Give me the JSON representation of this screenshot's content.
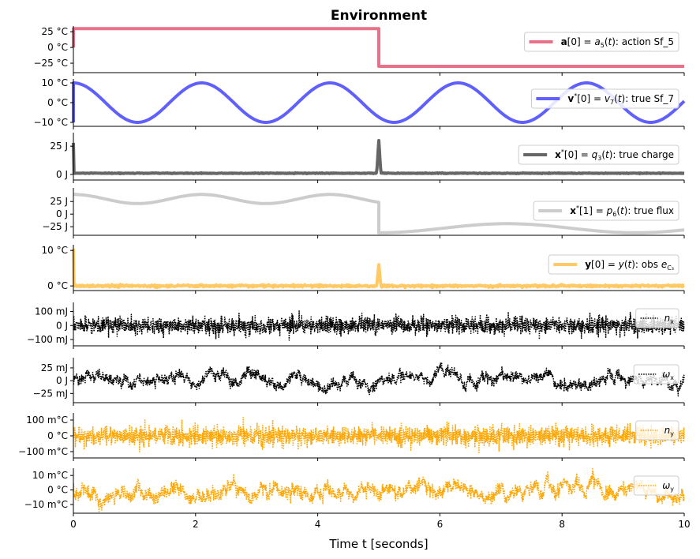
{
  "chart_data": {
    "type": "line",
    "title": "Environment",
    "xlabel": "Time t [seconds]",
    "xlim": [
      0,
      10
    ],
    "xticks": [
      0,
      2,
      4,
      6,
      8,
      10
    ],
    "grid": false,
    "legend_placement": "right",
    "panels": [
      {
        "ylim": [
          -40,
          34
        ],
        "yticks": [
          {
            "v": 25,
            "l": "25 °C"
          },
          {
            "v": 0,
            "l": "0 °C"
          },
          {
            "v": -25,
            "l": "−25 °C"
          }
        ],
        "color": "#e8718a",
        "style": "solid",
        "signal": {
          "kind": "step",
          "t0": 0,
          "start": 0,
          "before": 30,
          "step_t": 5,
          "after": -30
        },
        "legend": [
          {
            "t": "a",
            "s": "b"
          },
          {
            "t": "[0] = ",
            "s": ""
          },
          {
            "t": "a",
            "s": "i"
          },
          {
            "t": "5",
            "s": "sub"
          },
          {
            "t": "(",
            "s": ""
          },
          {
            "t": "t",
            "s": "i"
          },
          {
            "t": "): action Sf_5",
            "s": ""
          }
        ]
      },
      {
        "ylim": [
          -12,
          12
        ],
        "yticks": [
          {
            "v": 10,
            "l": "10 °C"
          },
          {
            "v": 0,
            "l": "0 °C"
          },
          {
            "v": -10,
            "l": "−10 °C"
          }
        ],
        "color": "#6060ff",
        "style": "solid",
        "signal": {
          "kind": "cosine",
          "amplitude": 10,
          "period": 2.1,
          "offset": 0,
          "start": -10
        },
        "legend": [
          {
            "t": "v",
            "s": "b"
          },
          {
            "t": "*",
            "s": "sup"
          },
          {
            "t": "[0] = ",
            "s": ""
          },
          {
            "t": "v",
            "s": "i"
          },
          {
            "t": "7",
            "s": "sub"
          },
          {
            "t": "(",
            "s": ""
          },
          {
            "t": "t",
            "s": "i"
          },
          {
            "t": "): true Sf_7",
            "s": ""
          }
        ]
      },
      {
        "ylim": [
          -5,
          37
        ],
        "yticks": [
          {
            "v": 25,
            "l": "25 J"
          },
          {
            "v": 0,
            "l": "0 J"
          }
        ],
        "color": "#666666",
        "style": "solid",
        "signal": {
          "kind": "spikes",
          "base": 1,
          "spikes": [
            {
              "t": 0,
              "v": 28
            },
            {
              "t": 5,
              "v": 30
            }
          ]
        },
        "legend": [
          {
            "t": "x",
            "s": "b"
          },
          {
            "t": "*",
            "s": "sup"
          },
          {
            "t": "[0] = ",
            "s": ""
          },
          {
            "t": "q",
            "s": "i"
          },
          {
            "t": "3",
            "s": "sub"
          },
          {
            "t": "(",
            "s": ""
          },
          {
            "t": "t",
            "s": "i"
          },
          {
            "t": "): true charge",
            "s": ""
          }
        ]
      },
      {
        "ylim": [
          -42,
          52
        ],
        "yticks": [
          {
            "v": 25,
            "l": "25 J"
          },
          {
            "v": 0,
            "l": "0 J"
          },
          {
            "v": -25,
            "l": "−25 J"
          }
        ],
        "color": "#cccccc",
        "style": "solid",
        "signal": {
          "kind": "flux",
          "before": {
            "mean": 30,
            "amplitude": 9,
            "period": 2.1
          },
          "step_t": 5,
          "after": {
            "mean": -28,
            "amplitude": 9,
            "period": 4.2
          }
        },
        "legend": [
          {
            "t": "x",
            "s": "b"
          },
          {
            "t": "*",
            "s": "sup"
          },
          {
            "t": "[1] = ",
            "s": ""
          },
          {
            "t": "p",
            "s": "i"
          },
          {
            "t": "6",
            "s": "sub"
          },
          {
            "t": "(",
            "s": ""
          },
          {
            "t": "t",
            "s": "i"
          },
          {
            "t": "): true flux",
            "s": ""
          }
        ]
      },
      {
        "ylim": [
          -1.3,
          11.6
        ],
        "yticks": [
          {
            "v": 10,
            "l": "10 °C"
          },
          {
            "v": 0,
            "l": "0 °C"
          }
        ],
        "color": "#ffc966",
        "style": "solid",
        "signal": {
          "kind": "spikes",
          "base": 0,
          "spikes": [
            {
              "t": 0,
              "v": 10.5
            },
            {
              "t": 5,
              "v": 6
            }
          ]
        },
        "legend": [
          {
            "t": "y",
            "s": "b"
          },
          {
            "t": "[0] = ",
            "s": ""
          },
          {
            "t": "y",
            "s": "i"
          },
          {
            "t": "(",
            "s": ""
          },
          {
            "t": "t",
            "s": "i"
          },
          {
            "t": "): obs ",
            "s": ""
          },
          {
            "t": "e",
            "s": "i"
          },
          {
            "t": "C₃",
            "s": "sub"
          }
        ]
      },
      {
        "ylim": [
          -145,
          165
        ],
        "yticks": [
          {
            "v": 100,
            "l": "100 mJ"
          },
          {
            "v": 0,
            "l": "0 J"
          },
          {
            "v": -100,
            "l": "−100 mJ"
          }
        ],
        "color": "#000000",
        "style": "dotted",
        "signal": {
          "kind": "white-noise",
          "std": 30
        },
        "legend": [
          {
            "t": "n",
            "s": "i"
          },
          {
            "t": "x",
            "s": "sub"
          }
        ]
      },
      {
        "ylim": [
          -43,
          45
        ],
        "yticks": [
          {
            "v": 25,
            "l": "25 mJ"
          },
          {
            "v": 0,
            "l": "0 J"
          },
          {
            "v": -25,
            "l": "−25 mJ"
          }
        ],
        "color": "#000000",
        "style": "dotted",
        "signal": {
          "kind": "correlated-noise",
          "std": 9
        },
        "legend": [
          {
            "t": "ω",
            "s": "i"
          },
          {
            "t": "x",
            "s": "sub"
          }
        ]
      },
      {
        "ylim": [
          -140,
          145
        ],
        "yticks": [
          {
            "v": 100,
            "l": "100 m°C"
          },
          {
            "v": 0,
            "l": "0 °C"
          },
          {
            "v": -100,
            "l": "−100 m°C"
          }
        ],
        "color": "#ffa500",
        "style": "dotted",
        "signal": {
          "kind": "white-noise",
          "std": 30
        },
        "legend": [
          {
            "t": "n",
            "s": "i"
          },
          {
            "t": "y",
            "s": "sub"
          }
        ]
      },
      {
        "ylim": [
          -16,
          15
        ],
        "yticks": [
          {
            "v": 10,
            "l": "10 m°C"
          },
          {
            "v": 0,
            "l": "0 °C"
          },
          {
            "v": -10,
            "l": "−10 m°C"
          }
        ],
        "color": "#ffa500",
        "style": "dotted",
        "signal": {
          "kind": "correlated-noise",
          "std": 4
        },
        "legend": [
          {
            "t": "ω",
            "s": "i"
          },
          {
            "t": "y",
            "s": "sub"
          }
        ]
      }
    ]
  }
}
